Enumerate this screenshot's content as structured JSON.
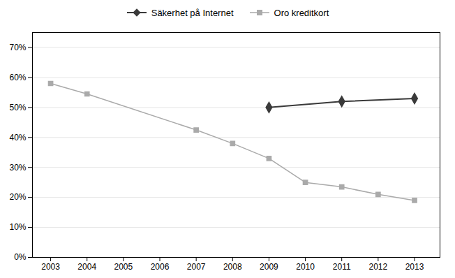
{
  "chart_data": {
    "type": "line",
    "series": [
      {
        "name": "Säkerhet på Internet",
        "color": "#3a3a3a",
        "marker": "diamond",
        "x": [
          2009,
          2011,
          2013
        ],
        "values": [
          0.5,
          0.52,
          0.53
        ]
      },
      {
        "name": "Oro kreditkort",
        "color": "#aaaaaa",
        "marker": "square",
        "x": [
          2003,
          2004,
          2007,
          2008,
          2009,
          2010,
          2011,
          2012,
          2013
        ],
        "values": [
          0.58,
          0.545,
          0.425,
          0.38,
          0.33,
          0.25,
          0.235,
          0.21,
          0.19
        ]
      }
    ],
    "xlim": [
      2002.5,
      2013.7
    ],
    "xticks": [
      2003,
      2004,
      2005,
      2006,
      2007,
      2008,
      2009,
      2010,
      2011,
      2012,
      2013
    ],
    "ylim": [
      0.0,
      0.75
    ],
    "yticks": [
      {
        "value": 0.0,
        "label": "0%"
      },
      {
        "value": 0.1,
        "label": "10%"
      },
      {
        "value": 0.2,
        "label": "20%"
      },
      {
        "value": 0.3,
        "label": "30%"
      },
      {
        "value": 0.4,
        "label": "40%"
      },
      {
        "value": 0.5,
        "label": "50%"
      },
      {
        "value": 0.6,
        "label": "60%"
      },
      {
        "value": 0.7,
        "label": "70%"
      }
    ],
    "grid": true,
    "legend": "top"
  }
}
